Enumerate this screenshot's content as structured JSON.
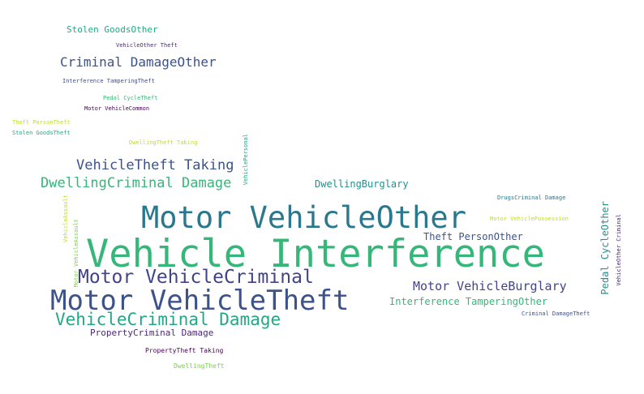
{
  "palette": {
    "green": "#35b779",
    "teal": "#2a788e",
    "slate": "#3b528b",
    "indigo": "#414487",
    "navy": "#482878",
    "purple": "#440154",
    "seafoam": "#22a884",
    "lime": "#7ad151",
    "yellow": "#bddf26",
    "cyan": "#21918c"
  },
  "words": [
    {
      "text": "Vehicle Interference",
      "color": "#35b779"
    },
    {
      "text": "Motor VehicleOther",
      "color": "#2a788e"
    },
    {
      "text": "Motor VehicleTheft",
      "color": "#3b528b"
    },
    {
      "text": "Motor VehicleCriminal",
      "color": "#414487"
    },
    {
      "text": "VehicleCriminal Damage",
      "color": "#22a884"
    },
    {
      "text": "DwellingCriminal Damage",
      "color": "#35b779"
    },
    {
      "text": "VehicleTheft Taking",
      "color": "#3b528b"
    },
    {
      "text": "Criminal DamageOther",
      "color": "#3b528b"
    },
    {
      "text": "Motor VehicleBurglary",
      "color": "#414487"
    },
    {
      "text": "Interference TamperingOther",
      "color": "#35b779"
    },
    {
      "text": "Theft PersonOther",
      "color": "#3b528b"
    },
    {
      "text": "DwellingBurglary",
      "color": "#21918c"
    },
    {
      "text": "Stolen GoodsOther",
      "color": "#22a884"
    },
    {
      "text": "PropertyCriminal Damage",
      "color": "#482878"
    },
    {
      "text": "Pedal CycleOther",
      "color": "#21918c"
    },
    {
      "text": "PropertyTheft Taking",
      "color": "#440154"
    },
    {
      "text": "DwellingTheft",
      "color": "#7ad151"
    },
    {
      "text": "VehicleOther Theft",
      "color": "#482878"
    },
    {
      "text": "Interference TamperingTheft",
      "color": "#3b528b"
    },
    {
      "text": "Pedal CycleTheft",
      "color": "#35b779"
    },
    {
      "text": "Motor VehicleCommon",
      "color": "#440154"
    },
    {
      "text": "Theft PersonTheft",
      "color": "#bddf26"
    },
    {
      "text": "Stolen GoodsTheft",
      "color": "#22a884"
    },
    {
      "text": "DwellingTheft Taking",
      "color": "#bddf26"
    },
    {
      "text": "DrugsCriminal Damage",
      "color": "#2a788e"
    },
    {
      "text": "Motor VehiclePossession",
      "color": "#bddf26"
    },
    {
      "text": "Criminal DamageTheft",
      "color": "#3b528b"
    },
    {
      "text": "VehicleOther Criminal",
      "color": "#482878"
    },
    {
      "text": "VehiclePersonal",
      "color": "#22a884"
    },
    {
      "text": "VehicleAssault",
      "color": "#bddf26"
    },
    {
      "text": "Motor VehicleAssault",
      "color": "#7ad151"
    }
  ]
}
